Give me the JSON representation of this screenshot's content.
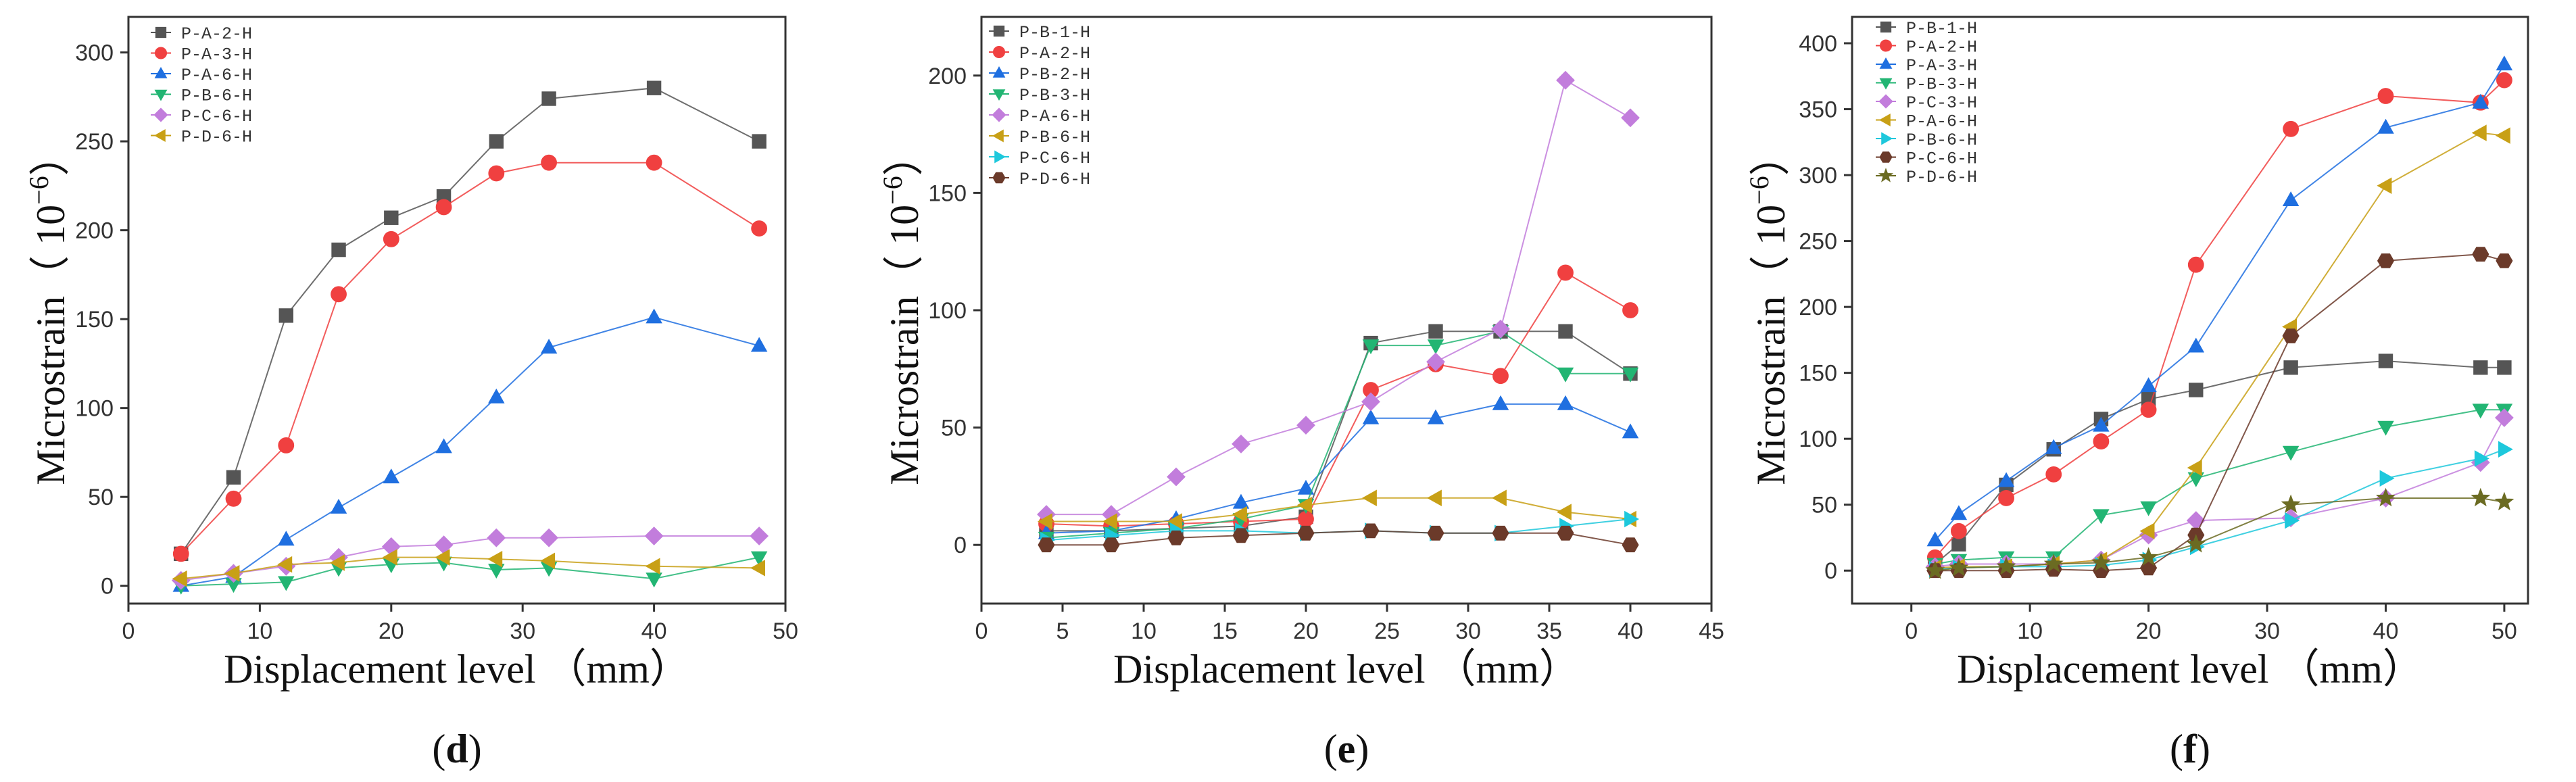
{
  "chart_data": [
    {
      "type": "line",
      "panel_label": "d",
      "xlabel": "Displacement level （mm）",
      "ylabel_main": "Microstrain（ 10",
      "ylabel_exp": "−6",
      "ylabel_close": "）",
      "xlim": [
        0,
        50
      ],
      "ylim": [
        -10,
        320
      ],
      "x_ticks": [
        0,
        10,
        20,
        30,
        40,
        50
      ],
      "y_ticks": [
        0,
        50,
        100,
        150,
        200,
        250,
        300
      ],
      "legend_position": "top-left",
      "series": [
        {
          "name": "P-A-2-H",
          "color": "#555555",
          "marker": "square",
          "x": [
            4,
            8,
            12,
            16,
            20,
            24,
            28,
            32,
            40,
            48
          ],
          "y": [
            18,
            61,
            152,
            189,
            207,
            219,
            250,
            274,
            280,
            250
          ]
        },
        {
          "name": "P-A-3-H",
          "color": "#f04040",
          "marker": "circle",
          "x": [
            4,
            8,
            12,
            16,
            20,
            24,
            28,
            32,
            40,
            48
          ],
          "y": [
            18,
            49,
            79,
            164,
            195,
            213,
            232,
            238,
            238,
            201
          ]
        },
        {
          "name": "P-A-6-H",
          "color": "#1f6fe0",
          "marker": "triangle-up",
          "x": [
            4,
            8,
            12,
            16,
            20,
            24,
            28,
            32,
            40,
            48
          ],
          "y": [
            0,
            5,
            26,
            44,
            61,
            78,
            106,
            134,
            151,
            135
          ]
        },
        {
          "name": "P-B-6-H",
          "color": "#22b573",
          "marker": "triangle-down",
          "x": [
            4,
            8,
            12,
            16,
            20,
            24,
            28,
            32,
            40,
            48
          ],
          "y": [
            0,
            1,
            2,
            10,
            12,
            13,
            9,
            10,
            4,
            16
          ]
        },
        {
          "name": "P-C-6-H",
          "color": "#c27ddc",
          "marker": "diamond",
          "x": [
            4,
            8,
            12,
            16,
            20,
            24,
            28,
            32,
            40,
            48
          ],
          "y": [
            3,
            7,
            11,
            16,
            22,
            23,
            27,
            27,
            28,
            28
          ]
        },
        {
          "name": "P-D-6-H",
          "color": "#c8a016",
          "marker": "triangle-left",
          "x": [
            4,
            8,
            12,
            16,
            20,
            24,
            28,
            32,
            40,
            48
          ],
          "y": [
            4,
            7,
            12,
            13,
            16,
            16,
            15,
            14,
            11,
            10
          ]
        }
      ]
    },
    {
      "type": "line",
      "panel_label": "e",
      "xlabel": "Displacement level （mm）",
      "ylabel_main": "Microstrain（ 10",
      "ylabel_exp": "−6",
      "ylabel_close": "）",
      "xlim": [
        0,
        45
      ],
      "ylim": [
        -25,
        225
      ],
      "x_ticks": [
        0,
        5,
        10,
        15,
        20,
        25,
        30,
        35,
        40,
        45
      ],
      "y_ticks": [
        0,
        50,
        100,
        150,
        200
      ],
      "legend_position": "top-left",
      "series": [
        {
          "name": "P-B-1-H",
          "color": "#555555",
          "marker": "square",
          "x": [
            4,
            8,
            12,
            16,
            20,
            24,
            28,
            32,
            36,
            40
          ],
          "y": [
            6,
            6,
            7,
            8,
            12,
            86,
            91,
            91,
            91,
            73
          ]
        },
        {
          "name": "P-A-2-H",
          "color": "#f04040",
          "marker": "circle",
          "x": [
            4,
            8,
            12,
            16,
            20,
            24,
            28,
            32,
            36,
            40
          ],
          "y": [
            9,
            8,
            9,
            10,
            11,
            66,
            77,
            72,
            116,
            100
          ]
        },
        {
          "name": "P-B-2-H",
          "color": "#1f6fe0",
          "marker": "triangle-up",
          "x": [
            4,
            8,
            12,
            16,
            20,
            24,
            28,
            32,
            36,
            40
          ],
          "y": [
            5,
            6,
            11,
            18,
            24,
            54,
            54,
            60,
            60,
            48
          ]
        },
        {
          "name": "P-B-3-H",
          "color": "#22b573",
          "marker": "triangle-down",
          "x": [
            4,
            8,
            12,
            16,
            20,
            24,
            28,
            32,
            36,
            40
          ],
          "y": [
            3,
            5,
            7,
            11,
            17,
            85,
            85,
            91,
            73,
            73
          ]
        },
        {
          "name": "P-A-6-H",
          "color": "#c27ddc",
          "marker": "diamond",
          "x": [
            4,
            8,
            12,
            16,
            20,
            24,
            28,
            32,
            36,
            40
          ],
          "y": [
            13,
            13,
            29,
            43,
            51,
            61,
            78,
            92,
            198,
            182
          ]
        },
        {
          "name": "P-B-6-H",
          "color": "#c8a016",
          "marker": "triangle-left",
          "x": [
            4,
            8,
            12,
            16,
            20,
            24,
            28,
            32,
            36,
            40
          ],
          "y": [
            10,
            10,
            10,
            13,
            17,
            20,
            20,
            20,
            14,
            11
          ]
        },
        {
          "name": "P-C-6-H",
          "color": "#1ec8dc",
          "marker": "triangle-right",
          "x": [
            4,
            8,
            12,
            16,
            20,
            24,
            28,
            32,
            36,
            40
          ],
          "y": [
            2,
            4,
            6,
            6,
            5,
            6,
            5,
            5,
            8,
            11
          ]
        },
        {
          "name": "P-D-6-H",
          "color": "#6b3a2a",
          "marker": "hexagon",
          "x": [
            4,
            8,
            12,
            16,
            20,
            24,
            28,
            32,
            36,
            40
          ],
          "y": [
            0,
            0,
            3,
            4,
            5,
            6,
            5,
            5,
            5,
            0
          ]
        }
      ]
    },
    {
      "type": "line",
      "panel_label": "f",
      "xlabel": "Displacement level （mm）",
      "ylabel_main": "Microstrain（ 10",
      "ylabel_exp": "−6",
      "ylabel_close": "）",
      "xlim": [
        -5,
        52
      ],
      "ylim": [
        -25,
        420
      ],
      "x_ticks": [
        0,
        10,
        20,
        30,
        40,
        50
      ],
      "y_ticks": [
        0,
        50,
        100,
        150,
        200,
        250,
        300,
        350,
        400
      ],
      "legend_position": "top-left",
      "series": [
        {
          "name": "P-B-1-H",
          "color": "#555555",
          "marker": "square",
          "x": [
            2,
            4,
            8,
            12,
            16,
            20,
            24,
            32,
            40,
            48,
            50
          ],
          "y": [
            5,
            20,
            65,
            92,
            115,
            130,
            137,
            154,
            159,
            154,
            154
          ]
        },
        {
          "name": "P-A-2-H",
          "color": "#f04040",
          "marker": "circle",
          "x": [
            2,
            4,
            8,
            12,
            16,
            20,
            24,
            32,
            40,
            48,
            50
          ],
          "y": [
            10,
            30,
            55,
            73,
            98,
            122,
            232,
            335,
            360,
            355,
            372
          ]
        },
        {
          "name": "P-A-3-H",
          "color": "#1f6fe0",
          "marker": "triangle-up",
          "x": [
            2,
            4,
            8,
            12,
            16,
            20,
            24,
            32,
            40,
            48,
            50
          ],
          "y": [
            23,
            43,
            68,
            93,
            110,
            140,
            170,
            281,
            336,
            355,
            384
          ]
        },
        {
          "name": "P-B-3-H",
          "color": "#22b573",
          "marker": "triangle-down",
          "x": [
            2,
            4,
            8,
            12,
            16,
            20,
            24,
            32,
            40,
            48,
            50
          ],
          "y": [
            5,
            8,
            10,
            10,
            42,
            48,
            70,
            90,
            109,
            122,
            122
          ]
        },
        {
          "name": "P-C-3-H",
          "color": "#c27ddc",
          "marker": "diamond",
          "x": [
            2,
            4,
            8,
            12,
            16,
            20,
            24,
            32,
            40,
            48,
            50
          ],
          "y": [
            3,
            5,
            5,
            5,
            8,
            27,
            38,
            40,
            55,
            82,
            116
          ]
        },
        {
          "name": "P-A-6-H",
          "color": "#c8a016",
          "marker": "triangle-left",
          "x": [
            2,
            4,
            8,
            12,
            16,
            20,
            24,
            32,
            40,
            48,
            50
          ],
          "y": [
            2,
            3,
            3,
            5,
            8,
            30,
            78,
            185,
            292,
            332,
            330
          ]
        },
        {
          "name": "P-B-6-H",
          "color": "#1ec8dc",
          "marker": "triangle-right",
          "x": [
            2,
            4,
            8,
            12,
            16,
            20,
            24,
            32,
            40,
            48,
            50
          ],
          "y": [
            1,
            2,
            3,
            3,
            4,
            8,
            18,
            38,
            70,
            85,
            92
          ]
        },
        {
          "name": "P-C-6-H",
          "color": "#6b3a2a",
          "marker": "hexagon",
          "x": [
            2,
            4,
            8,
            12,
            16,
            20,
            24,
            32,
            40,
            48,
            50
          ],
          "y": [
            0,
            0,
            0,
            1,
            0,
            2,
            27,
            178,
            235,
            240,
            235
          ]
        },
        {
          "name": "P-D-6-H",
          "color": "#6b6b22",
          "marker": "star",
          "x": [
            2,
            4,
            8,
            12,
            16,
            20,
            24,
            32,
            40,
            48,
            50
          ],
          "y": [
            0,
            2,
            3,
            5,
            6,
            10,
            20,
            50,
            55,
            55,
            52
          ]
        }
      ]
    }
  ]
}
